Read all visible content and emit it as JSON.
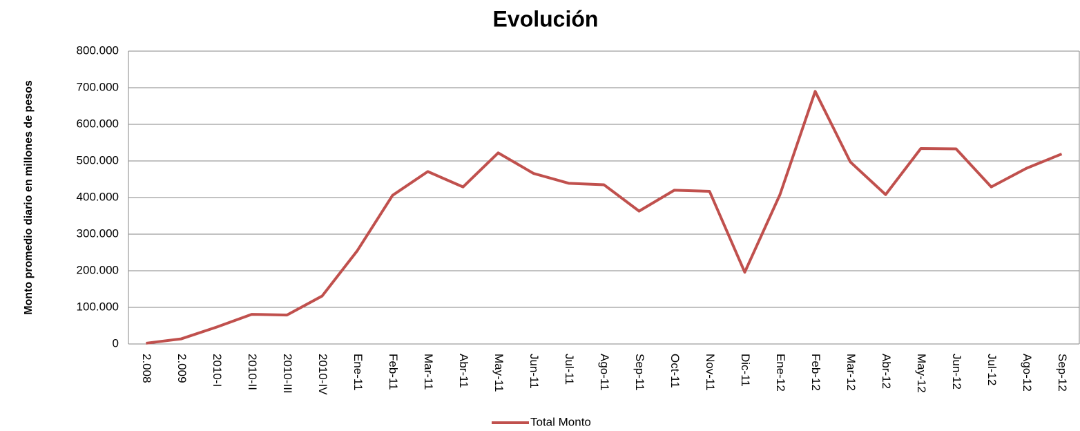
{
  "chart_data": {
    "type": "line",
    "title": "Evolución",
    "y_label": "Monto promedio diario en millones de pesos",
    "categories": [
      "2.008",
      "2.009",
      "2010-I",
      "2010-II",
      "2010-III",
      "2010-IV",
      "Ene-11",
      "Feb-11",
      "Mar-11",
      "Abr-11",
      "May-11",
      "Jun-11",
      "Jul-11",
      "Ago-11",
      "Sep-11",
      "Oct-11",
      "Nov-11",
      "Dic-11",
      "Ene-12",
      "Feb-12",
      "Mar-12",
      "Abr-12",
      "May-12",
      "Jun-12",
      "Jul-12",
      "Ago-12",
      "Sep-12"
    ],
    "series": [
      {
        "name": "Total Monto",
        "color": "#c0504d",
        "values": [
          2000,
          14000,
          46000,
          81000,
          79000,
          131000,
          255000,
          406000,
          471000,
          429000,
          522000,
          466000,
          439000,
          435000,
          363000,
          420000,
          417000,
          196000,
          408000,
          690000,
          497000,
          408000,
          534000,
          533000,
          429000,
          480000,
          519000
        ]
      }
    ],
    "ylim": [
      0,
      800000
    ],
    "yticks": [
      0,
      {
        "value": 100000,
        "label": "100.000"
      },
      {
        "value": 200000,
        "label": "200.000"
      },
      {
        "value": 300000,
        "label": "300.000"
      },
      {
        "value": 400000,
        "label": "400.000"
      },
      {
        "value": 500000,
        "label": "500.000"
      },
      {
        "value": 600000,
        "label": "600.000"
      },
      {
        "value": 700000,
        "label": "700.000"
      },
      {
        "value": 800000,
        "label": "800.000"
      }
    ],
    "grid": true,
    "legend": "bottom"
  }
}
